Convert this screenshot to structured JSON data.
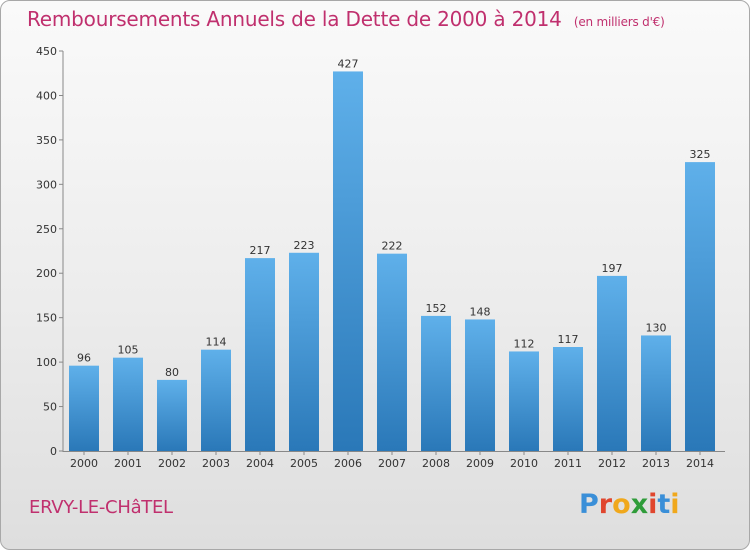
{
  "header": {
    "title": "Remboursements Annuels de la Dette de 2000 à 2014",
    "unit": "(en milliers d'€)"
  },
  "footer": {
    "commune": "ERVY-LE-CHâTEL",
    "brand": "Proxiti",
    "brand_colors": [
      "#3a8fd8",
      "#e0462e",
      "#f0a81c",
      "#2f9c3a",
      "#e0462e",
      "#3a8fd8",
      "#f0a81c"
    ]
  },
  "colors": {
    "bar_top": "#5fb0ea",
    "bar_bottom": "#2a78b8",
    "text": "#333333",
    "title": "#c0306e"
  },
  "chart_data": {
    "type": "bar",
    "categories": [
      "2000",
      "2001",
      "2002",
      "2003",
      "2004",
      "2005",
      "2006",
      "2007",
      "2008",
      "2009",
      "2010",
      "2011",
      "2012",
      "2013",
      "2014"
    ],
    "values": [
      96,
      105,
      80,
      114,
      217,
      223,
      427,
      222,
      152,
      148,
      112,
      117,
      197,
      130,
      325
    ],
    "title": "Remboursements Annuels de la Dette de 2000 à 2014",
    "xlabel": "",
    "ylabel": "",
    "ylim": [
      0,
      450
    ],
    "yticks": [
      0,
      50,
      100,
      150,
      200,
      250,
      300,
      350,
      400,
      450
    ],
    "grid": false,
    "data_labels": true
  }
}
